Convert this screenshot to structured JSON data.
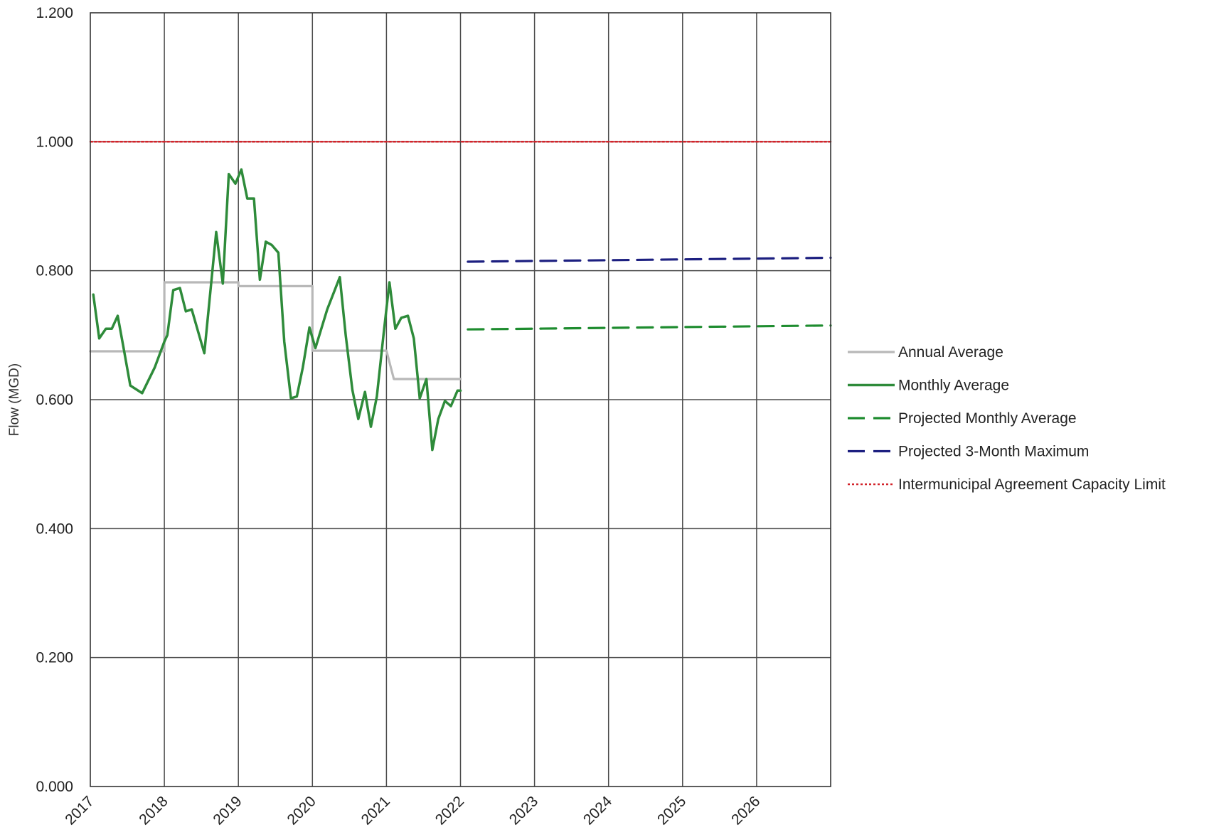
{
  "chart_data": {
    "type": "line",
    "title": "",
    "ylabel": "Flow (MGD)",
    "xlabel": "",
    "xlim": [
      2017,
      2027
    ],
    "ylim": [
      0,
      1.2
    ],
    "x_ticks": [
      "2017",
      "2018",
      "2019",
      "2020",
      "2021",
      "2022",
      "2023",
      "2024",
      "2025",
      "2026"
    ],
    "y_ticks": [
      "0.000",
      "0.200",
      "0.400",
      "0.600",
      "0.800",
      "1.000",
      "1.200"
    ],
    "grid": true,
    "legend_position": "right",
    "series": [
      {
        "name": "Annual Average",
        "color": "#b8b8b8",
        "style": "solid",
        "points": [
          [
            2017.0,
            0.675
          ],
          [
            2018.0,
            0.675
          ],
          [
            2018.0,
            0.782
          ],
          [
            2019.0,
            0.782
          ],
          [
            2019.0,
            0.776
          ],
          [
            2020.0,
            0.776
          ],
          [
            2020.0,
            0.676
          ],
          [
            2021.0,
            0.676
          ],
          [
            2021.1,
            0.632
          ],
          [
            2022.0,
            0.632
          ]
        ]
      },
      {
        "name": "Monthly Average",
        "color": "#2e8b3a",
        "style": "solid",
        "points": [
          [
            2017.04,
            0.763
          ],
          [
            2017.12,
            0.695
          ],
          [
            2017.21,
            0.71
          ],
          [
            2017.29,
            0.71
          ],
          [
            2017.37,
            0.73
          ],
          [
            2017.45,
            0.68
          ],
          [
            2017.54,
            0.622
          ],
          [
            2017.7,
            0.61
          ],
          [
            2017.87,
            0.65
          ],
          [
            2018.0,
            0.69
          ],
          [
            2018.04,
            0.7
          ],
          [
            2018.12,
            0.77
          ],
          [
            2018.21,
            0.773
          ],
          [
            2018.29,
            0.737
          ],
          [
            2018.37,
            0.74
          ],
          [
            2018.54,
            0.672
          ],
          [
            2018.7,
            0.86
          ],
          [
            2018.79,
            0.78
          ],
          [
            2018.87,
            0.95
          ],
          [
            2018.96,
            0.935
          ],
          [
            2019.04,
            0.957
          ],
          [
            2019.12,
            0.912
          ],
          [
            2019.21,
            0.912
          ],
          [
            2019.29,
            0.786
          ],
          [
            2019.37,
            0.845
          ],
          [
            2019.45,
            0.84
          ],
          [
            2019.54,
            0.828
          ],
          [
            2019.62,
            0.69
          ],
          [
            2019.71,
            0.602
          ],
          [
            2019.79,
            0.605
          ],
          [
            2019.87,
            0.65
          ],
          [
            2019.96,
            0.712
          ],
          [
            2020.04,
            0.68
          ],
          [
            2020.2,
            0.74
          ],
          [
            2020.37,
            0.79
          ],
          [
            2020.45,
            0.7
          ],
          [
            2020.54,
            0.615
          ],
          [
            2020.62,
            0.57
          ],
          [
            2020.71,
            0.612
          ],
          [
            2020.79,
            0.558
          ],
          [
            2020.87,
            0.605
          ],
          [
            2020.96,
            0.7
          ],
          [
            2021.04,
            0.782
          ],
          [
            2021.12,
            0.71
          ],
          [
            2021.2,
            0.727
          ],
          [
            2021.29,
            0.73
          ],
          [
            2021.37,
            0.695
          ],
          [
            2021.45,
            0.602
          ],
          [
            2021.54,
            0.632
          ],
          [
            2021.62,
            0.522
          ],
          [
            2021.7,
            0.57
          ],
          [
            2021.79,
            0.598
          ],
          [
            2021.87,
            0.59
          ],
          [
            2021.96,
            0.614
          ],
          [
            2022.0,
            0.614
          ]
        ]
      },
      {
        "name": "Projected Monthly Average",
        "color": "#1e8c2f",
        "style": "dashed",
        "points": [
          [
            2022.1,
            0.709
          ],
          [
            2027.0,
            0.715
          ]
        ]
      },
      {
        "name": "Projected 3-Month Maximum",
        "color": "#1c1f80",
        "style": "dashed",
        "points": [
          [
            2022.1,
            0.814
          ],
          [
            2027.0,
            0.82
          ]
        ]
      },
      {
        "name": "Intermunicipal Agreement Capacity Limit",
        "color": "#d2232a",
        "style": "dotted",
        "points": [
          [
            2017.0,
            1.0
          ],
          [
            2027.0,
            1.0
          ]
        ]
      }
    ]
  }
}
